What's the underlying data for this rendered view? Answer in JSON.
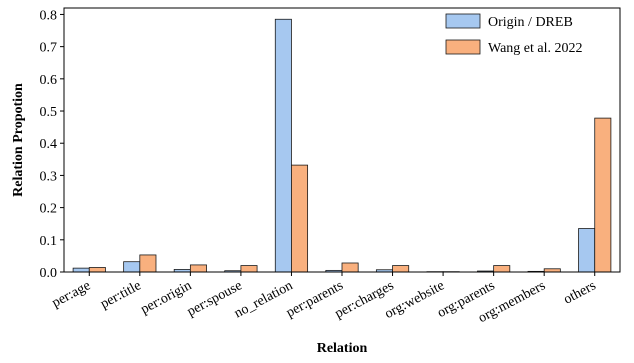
{
  "chart_data": {
    "type": "bar",
    "title": "",
    "xlabel": "Relation",
    "ylabel": "Relation Propotion",
    "ylim": [
      0,
      0.82
    ],
    "yticks": [
      0.0,
      0.1,
      0.2,
      0.3,
      0.4,
      0.5,
      0.6,
      0.7,
      0.8
    ],
    "ytick_labels": [
      "0.0",
      "0.1",
      "0.2",
      "0.3",
      "0.4",
      "0.5",
      "0.6",
      "0.7",
      "0.8"
    ],
    "grid": false,
    "legend_position": "top-right",
    "categories": [
      "per:age",
      "per:title",
      "per:origin",
      "per:spouse",
      "no_relation",
      "per:parents",
      "per:charges",
      "org:website",
      "org:parents",
      "org:members",
      "others"
    ],
    "series": [
      {
        "name": "Origin / DREB",
        "color": "#a6c8f0",
        "values": [
          0.012,
          0.032,
          0.008,
          0.004,
          0.785,
          0.005,
          0.007,
          0.001,
          0.003,
          0.002,
          0.135
        ]
      },
      {
        "name": "Wang et al. 2022",
        "color": "#f9b07e",
        "values": [
          0.014,
          0.053,
          0.022,
          0.02,
          0.332,
          0.028,
          0.02,
          0.001,
          0.02,
          0.01,
          0.478
        ]
      }
    ]
  }
}
